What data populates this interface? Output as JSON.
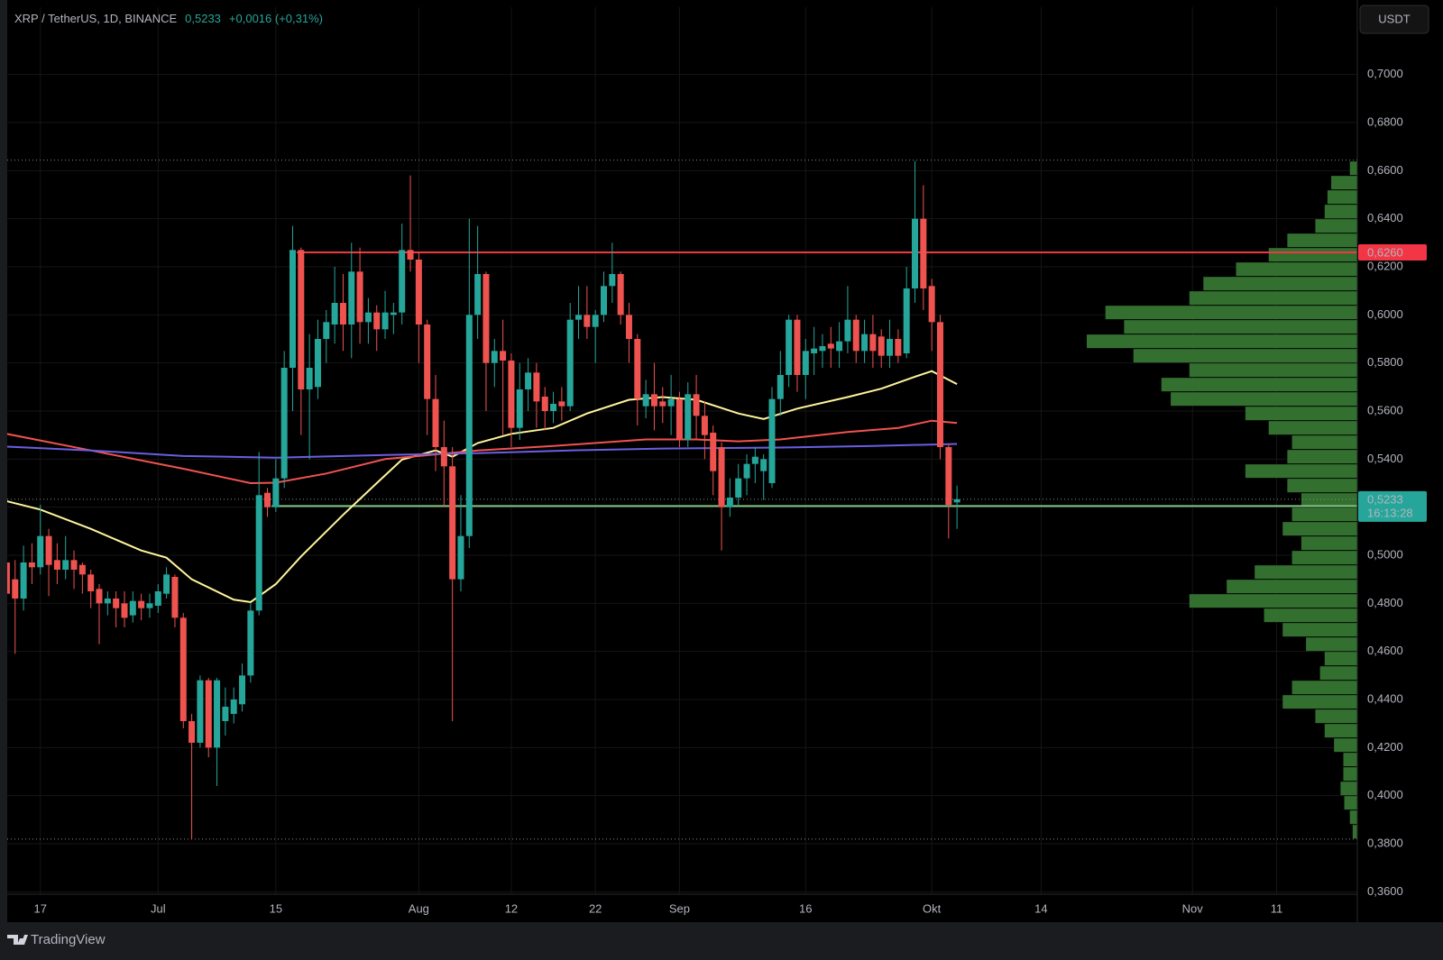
{
  "chart_data": {
    "type": "candlestick",
    "title": "XRP / TetherUS, 1D, BINANCE",
    "change": "+0,0016 (+0,31%)",
    "currency": "USDT",
    "brand": "TradingView",
    "up_color": "#26a69a",
    "down_color": "#ef5350",
    "grid": true,
    "xlim": [
      -3.94,
      156.6
    ],
    "xticks": [
      {
        "value": 0,
        "label": "17"
      },
      {
        "value": 14,
        "label": "Jul"
      },
      {
        "value": 28,
        "label": "15"
      },
      {
        "value": 45,
        "label": "Aug"
      },
      {
        "value": 56,
        "label": "12"
      },
      {
        "value": 66,
        "label": "22"
      },
      {
        "value": 76,
        "label": "Sep"
      },
      {
        "value": 91,
        "label": "16"
      },
      {
        "value": 106,
        "label": "Okt"
      },
      {
        "value": 119,
        "label": "14"
      },
      {
        "value": 137,
        "label": "Nov"
      },
      {
        "value": 147,
        "label": "11"
      }
    ],
    "ylim": [
      0.359,
      0.728
    ],
    "yticks": [
      {
        "value": 0.36,
        "label": "0,3600"
      },
      {
        "value": 0.38,
        "label": "0,3800"
      },
      {
        "value": 0.4,
        "label": "0,4000"
      },
      {
        "value": 0.42,
        "label": "0,4200"
      },
      {
        "value": 0.44,
        "label": "0,4400"
      },
      {
        "value": 0.46,
        "label": "0,4600"
      },
      {
        "value": 0.48,
        "label": "0,4800"
      },
      {
        "value": 0.5,
        "label": "0,5000"
      },
      {
        "value": 0.52,
        "label": "0,5200"
      },
      {
        "value": 0.54,
        "label": "0,5400"
      },
      {
        "value": 0.56,
        "label": "0,5600"
      },
      {
        "value": 0.58,
        "label": "0,5800"
      },
      {
        "value": 0.6,
        "label": "0,6000"
      },
      {
        "value": 0.62,
        "label": "0,6200"
      },
      {
        "value": 0.64,
        "label": "0,6400"
      },
      {
        "value": 0.66,
        "label": "0,6600"
      },
      {
        "value": 0.68,
        "label": "0,6800"
      },
      {
        "value": 0.7,
        "label": "0,7000"
      }
    ],
    "current_price": {
      "value": 0.5233,
      "label": "0,5233",
      "countdown": "16:13:28",
      "color": "#26a69a"
    },
    "levels": [
      {
        "value": 0.6644,
        "style": "dotted",
        "color": "#8a8a8a",
        "from": -3.94
      },
      {
        "value": 0.3819,
        "style": "dotted",
        "color": "#8a8a8a",
        "from": -3.94
      },
      {
        "value": 0.626,
        "label": "0,6260",
        "style": "solid",
        "color": "#f23645",
        "from": 30.5
      },
      {
        "value": 0.5205,
        "style": "solid",
        "color": "#81c784",
        "from": 27.5
      }
    ],
    "candles": [
      [
        -4,
        0.497,
        0.5,
        0.478,
        0.484
      ],
      [
        -3,
        0.49,
        0.498,
        0.459,
        0.482
      ],
      [
        -2,
        0.482,
        0.504,
        0.477,
        0.497
      ],
      [
        -1,
        0.497,
        0.505,
        0.488,
        0.495
      ],
      [
        0,
        0.495,
        0.521,
        0.492,
        0.508
      ],
      [
        1,
        0.508,
        0.511,
        0.483,
        0.496
      ],
      [
        2,
        0.498,
        0.505,
        0.488,
        0.494
      ],
      [
        3,
        0.494,
        0.508,
        0.49,
        0.498
      ],
      [
        4,
        0.498,
        0.502,
        0.486,
        0.494
      ],
      [
        5,
        0.496,
        0.497,
        0.484,
        0.492
      ],
      [
        6,
        0.492,
        0.494,
        0.478,
        0.485
      ],
      [
        7,
        0.486,
        0.488,
        0.463,
        0.48
      ],
      [
        8,
        0.48,
        0.485,
        0.475,
        0.482
      ],
      [
        9,
        0.482,
        0.485,
        0.47,
        0.478
      ],
      [
        10,
        0.48,
        0.485,
        0.47,
        0.474
      ],
      [
        11,
        0.475,
        0.485,
        0.472,
        0.481
      ],
      [
        12,
        0.481,
        0.484,
        0.473,
        0.478
      ],
      [
        13,
        0.478,
        0.484,
        0.474,
        0.48
      ],
      [
        14,
        0.479,
        0.488,
        0.476,
        0.485
      ],
      [
        15,
        0.484,
        0.495,
        0.482,
        0.492
      ],
      [
        16,
        0.491,
        0.492,
        0.47,
        0.474
      ],
      [
        17,
        0.474,
        0.476,
        0.428,
        0.431
      ],
      [
        18,
        0.431,
        0.434,
        0.382,
        0.422
      ],
      [
        19,
        0.422,
        0.45,
        0.42,
        0.448
      ],
      [
        20,
        0.448,
        0.449,
        0.416,
        0.42
      ],
      [
        21,
        0.42,
        0.449,
        0.404,
        0.448
      ],
      [
        22,
        0.431,
        0.445,
        0.425,
        0.437
      ],
      [
        23,
        0.434,
        0.445,
        0.43,
        0.44
      ],
      [
        24,
        0.438,
        0.455,
        0.435,
        0.45
      ],
      [
        25,
        0.45,
        0.48,
        0.447,
        0.477
      ],
      [
        26,
        0.477,
        0.543,
        0.475,
        0.525
      ],
      [
        27,
        0.526,
        0.528,
        0.516,
        0.52
      ],
      [
        28,
        0.52,
        0.54,
        0.518,
        0.532
      ],
      [
        29,
        0.532,
        0.585,
        0.528,
        0.578
      ],
      [
        30,
        0.578,
        0.637,
        0.56,
        0.627
      ],
      [
        31,
        0.627,
        0.628,
        0.55,
        0.569
      ],
      [
        32,
        0.569,
        0.592,
        0.54,
        0.578
      ],
      [
        33,
        0.57,
        0.598,
        0.565,
        0.59
      ],
      [
        34,
        0.59,
        0.602,
        0.58,
        0.597
      ],
      [
        35,
        0.596,
        0.62,
        0.588,
        0.605
      ],
      [
        36,
        0.605,
        0.617,
        0.585,
        0.596
      ],
      [
        37,
        0.596,
        0.63,
        0.582,
        0.618
      ],
      [
        38,
        0.618,
        0.628,
        0.588,
        0.597
      ],
      [
        39,
        0.597,
        0.607,
        0.588,
        0.601
      ],
      [
        40,
        0.601,
        0.604,
        0.585,
        0.594
      ],
      [
        41,
        0.594,
        0.61,
        0.59,
        0.601
      ],
      [
        42,
        0.6,
        0.605,
        0.592,
        0.601
      ],
      [
        43,
        0.601,
        0.638,
        0.596,
        0.627
      ],
      [
        44,
        0.627,
        0.658,
        0.618,
        0.623
      ],
      [
        45,
        0.623,
        0.626,
        0.58,
        0.596
      ],
      [
        46,
        0.596,
        0.598,
        0.55,
        0.565
      ],
      [
        47,
        0.565,
        0.575,
        0.535,
        0.545
      ],
      [
        48,
        0.545,
        0.556,
        0.52,
        0.537
      ],
      [
        49,
        0.537,
        0.545,
        0.431,
        0.49
      ],
      [
        50,
        0.49,
        0.525,
        0.485,
        0.508
      ],
      [
        51,
        0.508,
        0.64,
        0.503,
        0.6
      ],
      [
        52,
        0.6,
        0.637,
        0.59,
        0.617
      ],
      [
        53,
        0.617,
        0.618,
        0.56,
        0.58
      ],
      [
        54,
        0.58,
        0.59,
        0.57,
        0.585
      ],
      [
        55,
        0.585,
        0.598,
        0.55,
        0.581
      ],
      [
        56,
        0.581,
        0.584,
        0.545,
        0.553
      ],
      [
        57,
        0.553,
        0.58,
        0.548,
        0.569
      ],
      [
        58,
        0.569,
        0.582,
        0.56,
        0.576
      ],
      [
        59,
        0.576,
        0.58,
        0.553,
        0.564
      ],
      [
        60,
        0.566,
        0.57,
        0.552,
        0.56
      ],
      [
        61,
        0.56,
        0.568,
        0.555,
        0.563
      ],
      [
        62,
        0.564,
        0.57,
        0.556,
        0.562
      ],
      [
        63,
        0.562,
        0.605,
        0.56,
        0.598
      ],
      [
        64,
        0.598,
        0.612,
        0.59,
        0.6
      ],
      [
        65,
        0.6,
        0.612,
        0.59,
        0.595
      ],
      [
        66,
        0.595,
        0.602,
        0.58,
        0.6
      ],
      [
        67,
        0.6,
        0.618,
        0.597,
        0.612
      ],
      [
        68,
        0.612,
        0.63,
        0.605,
        0.617
      ],
      [
        69,
        0.617,
        0.618,
        0.596,
        0.6
      ],
      [
        70,
        0.6,
        0.605,
        0.58,
        0.59
      ],
      [
        71,
        0.59,
        0.592,
        0.554,
        0.565
      ],
      [
        72,
        0.562,
        0.573,
        0.557,
        0.567
      ],
      [
        73,
        0.567,
        0.58,
        0.552,
        0.562
      ],
      [
        74,
        0.564,
        0.57,
        0.555,
        0.562
      ],
      [
        75,
        0.562,
        0.575,
        0.55,
        0.565
      ],
      [
        76,
        0.565,
        0.568,
        0.545,
        0.548
      ],
      [
        77,
        0.548,
        0.572,
        0.545,
        0.567
      ],
      [
        78,
        0.567,
        0.575,
        0.548,
        0.558
      ],
      [
        79,
        0.558,
        0.564,
        0.54,
        0.55
      ],
      [
        80,
        0.551,
        0.554,
        0.525,
        0.535
      ],
      [
        81,
        0.545,
        0.547,
        0.502,
        0.52
      ],
      [
        82,
        0.52,
        0.532,
        0.516,
        0.524
      ],
      [
        83,
        0.524,
        0.538,
        0.521,
        0.532
      ],
      [
        84,
        0.532,
        0.542,
        0.525,
        0.538
      ],
      [
        85,
        0.538,
        0.545,
        0.53,
        0.541
      ],
      [
        86,
        0.535,
        0.542,
        0.523,
        0.54
      ],
      [
        87,
        0.53,
        0.57,
        0.528,
        0.565
      ],
      [
        88,
        0.565,
        0.585,
        0.558,
        0.575
      ],
      [
        89,
        0.575,
        0.6,
        0.57,
        0.598
      ],
      [
        90,
        0.598,
        0.6,
        0.568,
        0.575
      ],
      [
        91,
        0.575,
        0.59,
        0.565,
        0.585
      ],
      [
        92,
        0.584,
        0.595,
        0.575,
        0.586
      ],
      [
        93,
        0.585,
        0.592,
        0.578,
        0.587
      ],
      [
        94,
        0.588,
        0.595,
        0.578,
        0.586
      ],
      [
        95,
        0.585,
        0.597,
        0.578,
        0.589
      ],
      [
        96,
        0.589,
        0.612,
        0.584,
        0.598
      ],
      [
        97,
        0.598,
        0.6,
        0.58,
        0.585
      ],
      [
        98,
        0.585,
        0.598,
        0.58,
        0.592
      ],
      [
        99,
        0.592,
        0.6,
        0.578,
        0.585
      ],
      [
        100,
        0.591,
        0.594,
        0.578,
        0.583
      ],
      [
        101,
        0.583,
        0.598,
        0.578,
        0.59
      ],
      [
        102,
        0.59,
        0.594,
        0.58,
        0.583
      ],
      [
        103,
        0.584,
        0.62,
        0.582,
        0.611
      ],
      [
        104,
        0.611,
        0.664,
        0.605,
        0.64
      ],
      [
        105,
        0.64,
        0.654,
        0.602,
        0.611
      ],
      [
        106,
        0.612,
        0.615,
        0.585,
        0.597
      ],
      [
        107,
        0.597,
        0.6,
        0.54,
        0.545
      ],
      [
        108,
        0.545,
        0.546,
        0.507,
        0.521
      ],
      [
        109,
        0.522,
        0.529,
        0.511,
        0.5233
      ]
    ],
    "series": [
      {
        "color": "#fff59d",
        "x": [
          -4,
          0,
          6,
          12,
          15,
          18,
          23,
          25,
          28,
          31,
          36,
          40,
          43,
          47,
          49,
          52,
          56,
          61,
          65,
          70,
          74,
          78,
          83,
          86,
          90,
          96,
          100,
          104,
          106,
          109
        ],
        "values": [
          0.5225,
          0.519,
          0.511,
          0.502,
          0.499,
          0.49,
          0.4815,
          0.4805,
          0.488,
          0.4995,
          0.5168,
          0.53,
          0.5398,
          0.5436,
          0.541,
          0.5467,
          0.5505,
          0.553,
          0.559,
          0.5647,
          0.5658,
          0.5647,
          0.559,
          0.5567,
          0.561,
          0.5658,
          0.5693,
          0.5743,
          0.5766,
          0.5712
        ]
      },
      {
        "color": "#f05350",
        "x": [
          -4,
          6,
          17,
          25,
          28,
          34,
          41,
          45,
          52,
          61,
          72,
          78,
          83,
          88,
          96,
          102,
          106,
          109
        ],
        "values": [
          0.5505,
          0.5436,
          0.536,
          0.53,
          0.5302,
          0.534,
          0.54,
          0.5413,
          0.5436,
          0.5455,
          0.5482,
          0.5482,
          0.5474,
          0.5482,
          0.5513,
          0.553,
          0.556,
          0.555
        ]
      },
      {
        "color": "#6a5fe0",
        "x": [
          -4,
          6,
          17,
          28,
          41,
          52,
          63,
          74,
          88,
          99,
          109
        ],
        "values": [
          0.5452,
          0.5436,
          0.5413,
          0.5406,
          0.5417,
          0.5425,
          0.5436,
          0.5444,
          0.5448,
          0.5455,
          0.5463
        ]
      }
    ],
    "volume_profile": {
      "color": "#33702f",
      "bins": [
        0.382,
        0.388,
        0.394,
        0.4,
        0.406,
        0.412,
        0.418,
        0.424,
        0.43,
        0.436,
        0.442,
        0.448,
        0.454,
        0.46,
        0.466,
        0.472,
        0.478,
        0.484,
        0.49,
        0.496,
        0.502,
        0.508,
        0.514,
        0.52,
        0.526,
        0.532,
        0.538,
        0.544,
        0.55,
        0.556,
        0.562,
        0.568,
        0.574,
        0.58,
        0.586,
        0.592,
        0.598,
        0.604,
        0.61,
        0.616,
        0.622,
        0.628,
        0.634,
        0.64,
        0.646,
        0.652,
        0.658,
        0.664
      ],
      "volumes": [
        5,
        8,
        14,
        18,
        15,
        15,
        25,
        35,
        45,
        80,
        70,
        40,
        35,
        55,
        80,
        100,
        180,
        140,
        110,
        70,
        60,
        80,
        70,
        60,
        75,
        120,
        75,
        70,
        95,
        120,
        200,
        210,
        180,
        240,
        290,
        250,
        270,
        180,
        165,
        130,
        95,
        75,
        45,
        35,
        32,
        28,
        8
      ]
    }
  }
}
